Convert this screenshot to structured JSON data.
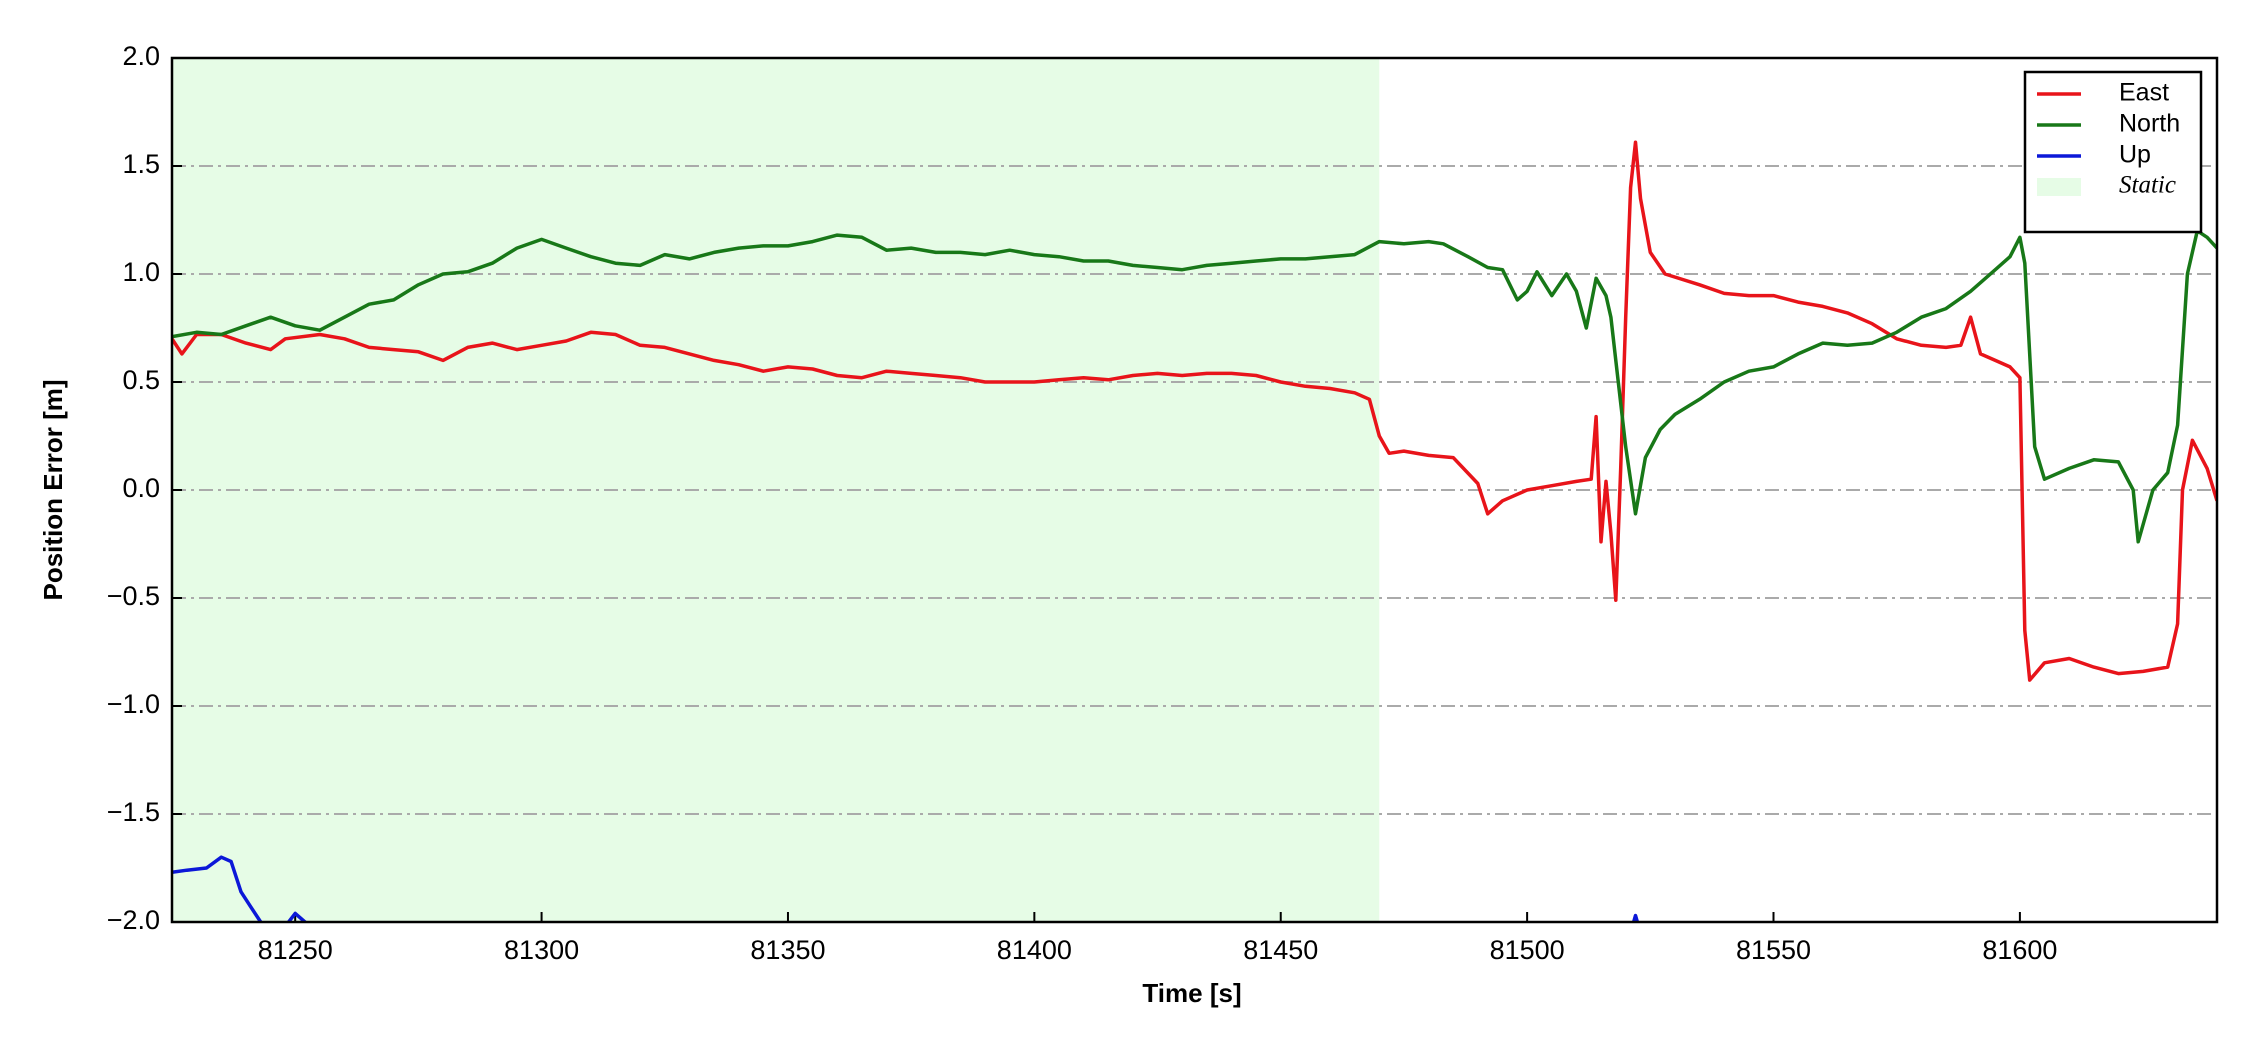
{
  "chart_data": {
    "type": "line",
    "xlabel": "Time [s]",
    "ylabel": "Position Error [m]",
    "xlim": [
      81225,
      81640
    ],
    "ylim": [
      -2.0,
      2.0
    ],
    "xticks": [
      81250,
      81300,
      81350,
      81400,
      81450,
      81500,
      81550,
      81600
    ],
    "yticks": [
      {
        "value": 2.0,
        "label": "2.0"
      },
      {
        "value": 1.5,
        "label": "1.5"
      },
      {
        "value": 1.0,
        "label": "1.0"
      },
      {
        "value": 0.5,
        "label": "0.5"
      },
      {
        "value": 0.0,
        "label": "0.0"
      },
      {
        "value": -0.5,
        "label": "−0.5"
      },
      {
        "value": -1.0,
        "label": "−1.0"
      },
      {
        "value": -1.5,
        "label": "−1.5"
      },
      {
        "value": -2.0,
        "label": "−2.0"
      }
    ],
    "grid": true,
    "legend": "upper right",
    "static_span": {
      "label": "Static",
      "xmin": 81225,
      "xmax": 81470,
      "color": "#e6fce6"
    },
    "series": [
      {
        "name": "East",
        "color": "#e8141a",
        "x": [
          81225,
          81227,
          81230,
          81235,
          81240,
          81245,
          81248,
          81255,
          81260,
          81265,
          81270,
          81275,
          81280,
          81285,
          81290,
          81295,
          81300,
          81305,
          81310,
          81315,
          81320,
          81325,
          81330,
          81335,
          81340,
          81345,
          81350,
          81355,
          81360,
          81365,
          81370,
          81375,
          81380,
          81385,
          81390,
          81395,
          81400,
          81405,
          81410,
          81415,
          81420,
          81425,
          81430,
          81435,
          81440,
          81445,
          81450,
          81455,
          81460,
          81465,
          81468,
          81470,
          81472,
          81475,
          81480,
          81485,
          81490,
          81492,
          81495,
          81500,
          81505,
          81510,
          81513,
          81514,
          81515,
          81516,
          81517,
          81518,
          81519,
          81520,
          81521,
          81522,
          81523,
          81525,
          81528,
          81535,
          81540,
          81545,
          81550,
          81555,
          81560,
          81565,
          81570,
          81575,
          81580,
          81585,
          81588,
          81590,
          81592,
          81595,
          81598,
          81600,
          81601,
          81602,
          81605,
          81610,
          81615,
          81620,
          81625,
          81630,
          81632,
          81633,
          81635,
          81638,
          81640
        ],
        "values": [
          0.7,
          0.63,
          0.72,
          0.72,
          0.68,
          0.65,
          0.7,
          0.72,
          0.7,
          0.66,
          0.65,
          0.64,
          0.6,
          0.66,
          0.68,
          0.65,
          0.67,
          0.69,
          0.73,
          0.72,
          0.67,
          0.66,
          0.63,
          0.6,
          0.58,
          0.55,
          0.57,
          0.56,
          0.53,
          0.52,
          0.55,
          0.54,
          0.53,
          0.52,
          0.5,
          0.5,
          0.5,
          0.51,
          0.52,
          0.51,
          0.53,
          0.54,
          0.53,
          0.54,
          0.54,
          0.53,
          0.5,
          0.48,
          0.47,
          0.45,
          0.42,
          0.25,
          0.17,
          0.18,
          0.16,
          0.15,
          0.03,
          -0.11,
          -0.05,
          0.0,
          0.02,
          0.04,
          0.05,
          0.34,
          -0.24,
          0.04,
          -0.2,
          -0.51,
          0.1,
          0.8,
          1.4,
          1.61,
          1.35,
          1.1,
          1.0,
          0.95,
          0.91,
          0.9,
          0.9,
          0.87,
          0.85,
          0.82,
          0.77,
          0.7,
          0.67,
          0.66,
          0.67,
          0.8,
          0.63,
          0.6,
          0.57,
          0.52,
          -0.65,
          -0.88,
          -0.8,
          -0.78,
          -0.82,
          -0.85,
          -0.84,
          -0.82,
          -0.62,
          0.0,
          0.23,
          0.1,
          -0.05
        ]
      },
      {
        "name": "North",
        "color": "#187818",
        "x": [
          81225,
          81230,
          81235,
          81240,
          81245,
          81250,
          81255,
          81260,
          81265,
          81270,
          81275,
          81280,
          81285,
          81290,
          81295,
          81300,
          81305,
          81310,
          81315,
          81320,
          81325,
          81330,
          81335,
          81340,
          81345,
          81350,
          81355,
          81360,
          81365,
          81370,
          81375,
          81380,
          81385,
          81390,
          81395,
          81400,
          81405,
          81410,
          81415,
          81420,
          81425,
          81430,
          81435,
          81440,
          81445,
          81450,
          81455,
          81460,
          81465,
          81470,
          81475,
          81480,
          81483,
          81488,
          81492,
          81495,
          81498,
          81500,
          81502,
          81505,
          81508,
          81510,
          81512,
          81514,
          81516,
          81517,
          81518,
          81520,
          81522,
          81524,
          81527,
          81530,
          81535,
          81540,
          81545,
          81550,
          81555,
          81560,
          81565,
          81570,
          81575,
          81580,
          81585,
          81590,
          81595,
          81598,
          81600,
          81601,
          81603,
          81605,
          81610,
          81615,
          81620,
          81623,
          81624,
          81627,
          81630,
          81632,
          81634,
          81636,
          81638,
          81640
        ],
        "values": [
          0.71,
          0.73,
          0.72,
          0.76,
          0.8,
          0.76,
          0.74,
          0.8,
          0.86,
          0.88,
          0.95,
          1.0,
          1.01,
          1.05,
          1.12,
          1.16,
          1.12,
          1.08,
          1.05,
          1.04,
          1.09,
          1.07,
          1.1,
          1.12,
          1.13,
          1.13,
          1.15,
          1.18,
          1.17,
          1.11,
          1.12,
          1.1,
          1.1,
          1.09,
          1.11,
          1.09,
          1.08,
          1.06,
          1.06,
          1.04,
          1.03,
          1.02,
          1.04,
          1.05,
          1.06,
          1.07,
          1.07,
          1.08,
          1.09,
          1.15,
          1.14,
          1.15,
          1.14,
          1.08,
          1.03,
          1.02,
          0.88,
          0.92,
          1.01,
          0.9,
          1.0,
          0.92,
          0.75,
          0.98,
          0.9,
          0.8,
          0.6,
          0.2,
          -0.11,
          0.15,
          0.28,
          0.35,
          0.42,
          0.5,
          0.55,
          0.57,
          0.63,
          0.68,
          0.67,
          0.68,
          0.73,
          0.8,
          0.84,
          0.92,
          1.02,
          1.08,
          1.17,
          1.05,
          0.2,
          0.05,
          0.1,
          0.14,
          0.13,
          0.0,
          -0.24,
          0.0,
          0.08,
          0.3,
          1.0,
          1.2,
          1.17,
          1.12
        ]
      },
      {
        "name": "Up",
        "color": "#0c18d8",
        "x": [
          81225,
          81228,
          81232,
          81235,
          81237,
          81239,
          81241,
          81243,
          81244,
          81246,
          81248,
          81250,
          81252,
          81253,
          81500,
          81521,
          81522,
          81523
        ],
        "values": [
          -1.77,
          -1.76,
          -1.75,
          -1.7,
          -1.72,
          -1.86,
          -1.93,
          -2.0,
          -2.1,
          null,
          -2.02,
          -1.96,
          -2.0,
          -2.05,
          null,
          -2.05,
          -1.97,
          -2.05
        ]
      }
    ]
  }
}
